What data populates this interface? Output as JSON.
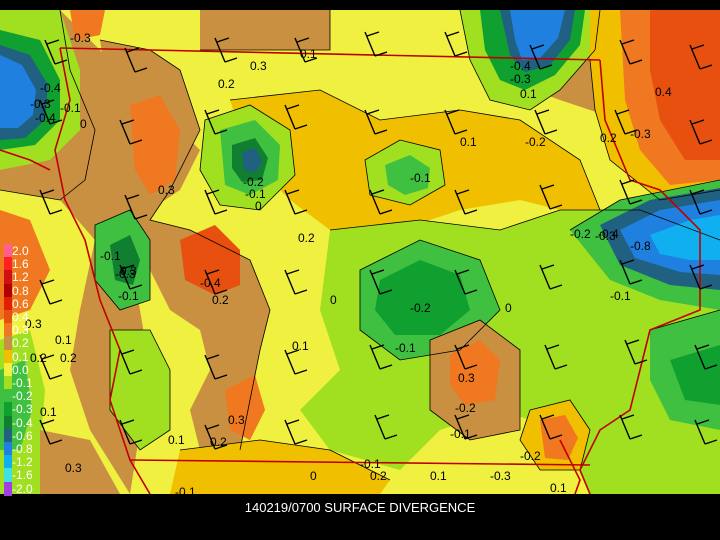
{
  "title": "140219/0700 SURFACE DIVERGENCE",
  "legend": [
    {
      "label": "2.0",
      "color": "#ff6090"
    },
    {
      "label": "1.6",
      "color": "#ff2020"
    },
    {
      "label": "1.2",
      "color": "#d01010"
    },
    {
      "label": "0.8",
      "color": "#b00000"
    },
    {
      "label": "0.6",
      "color": "#e02000"
    },
    {
      "label": "0.4",
      "color": "#e85010"
    },
    {
      "label": "0.3",
      "color": "#f07820"
    },
    {
      "label": "0.2",
      "color": "#c89040"
    },
    {
      "label": "0.1",
      "color": "#f0c000"
    },
    {
      "label": "0.0",
      "color": "#f0f040"
    },
    {
      "label": "-0.1",
      "color": "#a0e020"
    },
    {
      "label": "-0.2",
      "color": "#40c040"
    },
    {
      "label": "-0.3",
      "color": "#10a030"
    },
    {
      "label": "-0.4",
      "color": "#108030"
    },
    {
      "label": "-0.6",
      "color": "#206080"
    },
    {
      "label": "-0.8",
      "color": "#2080e0"
    },
    {
      "label": "-1.2",
      "color": "#10b0f0"
    },
    {
      "label": "-1.6",
      "color": "#40e0e0"
    },
    {
      "label": "-2.0",
      "color": "#a040e0"
    }
  ],
  "colors": {
    "neutral": "#f0f040",
    "pos01": "#f0c000",
    "pos02": "#c89040",
    "pos03": "#f07820",
    "pos04": "#e85010",
    "neg01": "#a0e020",
    "neg02": "#40c040",
    "neg03": "#10a030",
    "neg04": "#108030",
    "neg06": "#206080",
    "neg08": "#2080e0",
    "neg12": "#10b0f0",
    "boundary": "#c00000"
  },
  "contour_labels": [
    "-0.3",
    "0.1",
    "0.3",
    "-0.4",
    "0.1",
    "0.2",
    "-0.4",
    "-0.3",
    "-0.3",
    "0.4",
    "-0.3",
    "-0.1",
    "-0.4",
    "0",
    "0.1",
    "-0.2",
    "0.2",
    "0.3",
    "-0.2",
    "-0.1",
    "-0.1",
    "0",
    "-0.3",
    "-0.2",
    "-0.4",
    "-0.8",
    "0.2",
    "-0.1",
    "-0.4",
    "0",
    "0.3",
    "0.1",
    "-0.3",
    "-0.2",
    "-0.1",
    "0",
    "-0.2",
    "-0.1",
    "0.1",
    "0.3",
    "0.1",
    "0.2",
    "-0.2",
    "0.1",
    "0.3",
    "0.2",
    "0.1",
    "0.3",
    "0.2",
    "-0.1",
    "-0.1",
    "-0.1",
    "0.2",
    "-0.1",
    "0.3",
    "0",
    "0.2",
    "0.1",
    "-0.3"
  ]
}
